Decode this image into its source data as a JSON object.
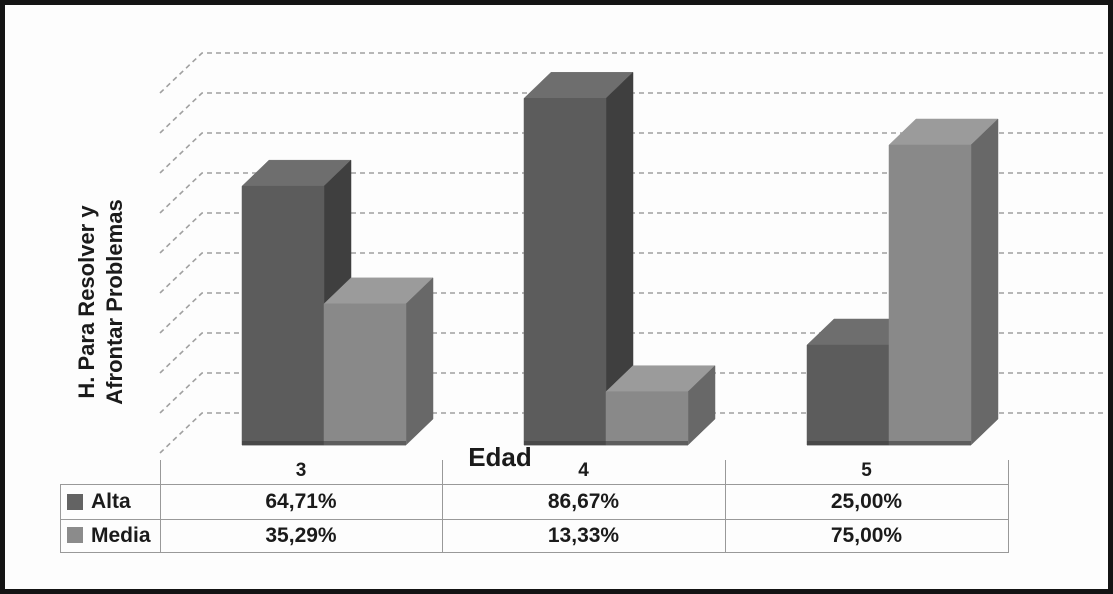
{
  "chart_data": {
    "type": "bar",
    "variant": "3d-clustered-column",
    "title": "",
    "xlabel": "Edad",
    "ylabel": "H. Para Resolver y Afrontar Problemas",
    "ylabel_lines": [
      "H. Para Resolver y",
      "Afrontar Problemas"
    ],
    "categories": [
      "3",
      "4",
      "5"
    ],
    "series": [
      {
        "name": "Alta",
        "values": [
          64.71,
          86.67,
          25.0
        ],
        "labels": [
          "64,71%",
          "86,67%",
          "25,00%"
        ],
        "color_front": "#5c5c5c",
        "color_side": "#3f3f3f",
        "color_top": "#6e6e6e",
        "legend_color": "#636363"
      },
      {
        "name": "Media",
        "values": [
          35.29,
          13.33,
          75.0
        ],
        "labels": [
          "35,29%",
          "13,33%",
          "75,00%"
        ],
        "color_front": "#898989",
        "color_side": "#686868",
        "color_top": "#9b9b9b",
        "legend_color": "#8b8b8b"
      }
    ],
    "axis": {
      "min": 0,
      "max": 90,
      "major_unit": 10,
      "unit": "%"
    },
    "grid": true,
    "gridline_color": "#a0a0a0",
    "legend_position": "data-table",
    "background": "#fdfdfd",
    "frame_border_color": "#141414"
  }
}
